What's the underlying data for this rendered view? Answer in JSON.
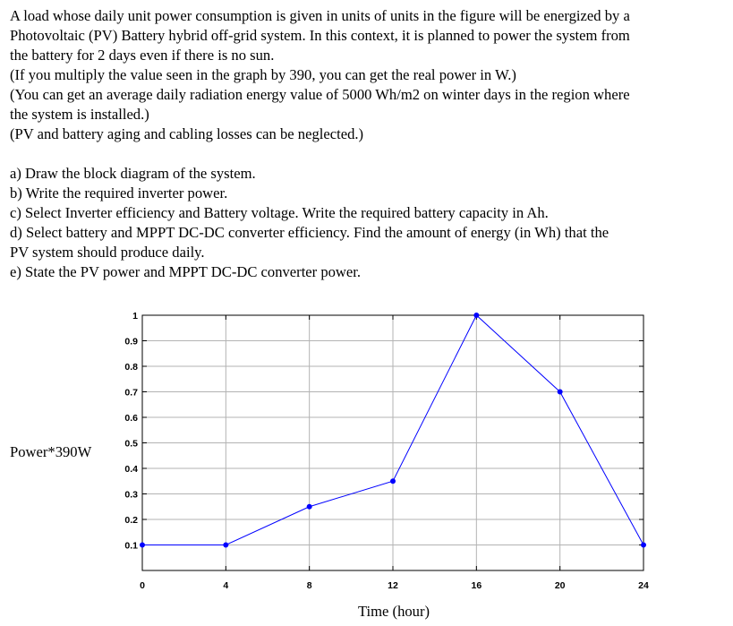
{
  "problem": {
    "lines": [
      "A load whose daily unit power consumption is given in units of units in the figure will be energized by a",
      "Photovoltaic (PV) Battery hybrid off-grid system. In this context, it is planned to power the system from",
      "the battery for 2 days even if there is no sun.",
      "(If you multiply the value seen in the graph by 390, you can get the real power in W.)",
      "(You can get an average daily radiation energy value of 5000 Wh/m2 on winter days in the region where",
      "the system is installed.)",
      "(PV and battery aging and cabling losses can be neglected.)"
    ],
    "questions": [
      "a) Draw the block diagram of the system.",
      "b) Write the required inverter power.",
      "c) Select Inverter efficiency and Battery voltage. Write the required battery capacity in Ah.",
      "d) Select battery and MPPT DC-DC converter efficiency. Find the amount of energy (in Wh) that the",
      "PV system should produce daily.",
      "e) State the PV power and MPPT DC-DC converter power."
    ]
  },
  "chart_data": {
    "type": "line",
    "title": "",
    "xlabel": "Time (hour)",
    "ylabel": "Power*390W",
    "xlim": [
      0,
      24
    ],
    "ylim": [
      0,
      1
    ],
    "xticks": [
      0,
      4,
      8,
      12,
      16,
      20,
      24
    ],
    "yticks": [
      0.1,
      0.2,
      0.3,
      0.4,
      0.5,
      0.6,
      0.7,
      0.8,
      0.9,
      1
    ],
    "ytick_labels": [
      "0.1",
      "0.2",
      "0.3",
      "0.4",
      "0.5",
      "0.6",
      "0.7",
      "0.8",
      "0.9",
      "1"
    ],
    "grid": true,
    "series": [
      {
        "x": [
          0,
          4,
          8,
          12,
          16,
          20,
          24
        ],
        "y": [
          0.1,
          0.1,
          0.25,
          0.35,
          1.0,
          0.7,
          0.1
        ],
        "color": "#0000ff",
        "marker": "dot"
      }
    ]
  }
}
